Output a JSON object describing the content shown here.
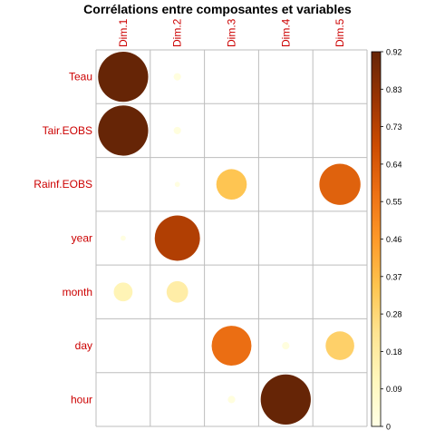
{
  "chart_data": {
    "type": "heatmap",
    "style": "circle-correlation-plot",
    "title": "Corrélations entre composantes et variables",
    "columns": [
      "Dim.1",
      "Dim.2",
      "Dim.3",
      "Dim.4",
      "Dim.5"
    ],
    "rows": [
      "Teau",
      "Tair.EOBS",
      "Rainf.EOBS",
      "year",
      "month",
      "day",
      "hour"
    ],
    "values": [
      [
        0.92,
        0.02,
        0.0,
        0.0,
        0.0
      ],
      [
        0.92,
        0.02,
        0.0,
        0.0,
        0.0
      ],
      [
        0.0,
        0.01,
        0.34,
        0.0,
        0.62
      ],
      [
        0.01,
        0.75,
        0.0,
        0.0,
        0.0
      ],
      [
        0.13,
        0.17,
        0.0,
        0.0,
        0.0
      ],
      [
        0.0,
        0.0,
        0.58,
        0.02,
        0.3
      ],
      [
        0.0,
        0.0,
        0.02,
        0.92,
        0.0
      ]
    ],
    "scale_range": [
      0,
      0.92
    ],
    "colorbar_ticks": [
      "0.92",
      "0.83",
      "0.73",
      "0.64",
      "0.55",
      "0.46",
      "0.37",
      "0.28",
      "0.18",
      "0.09",
      "0"
    ],
    "colors": {
      "label": "#cc0000",
      "grid": "#bdbdbd",
      "palette": [
        "#ffffe5",
        "#fff7bc",
        "#fee391",
        "#fec44f",
        "#fe9929",
        "#ec7014",
        "#cc4c02",
        "#993404",
        "#662506"
      ]
    },
    "grid": true,
    "legend": "right colorbar"
  }
}
